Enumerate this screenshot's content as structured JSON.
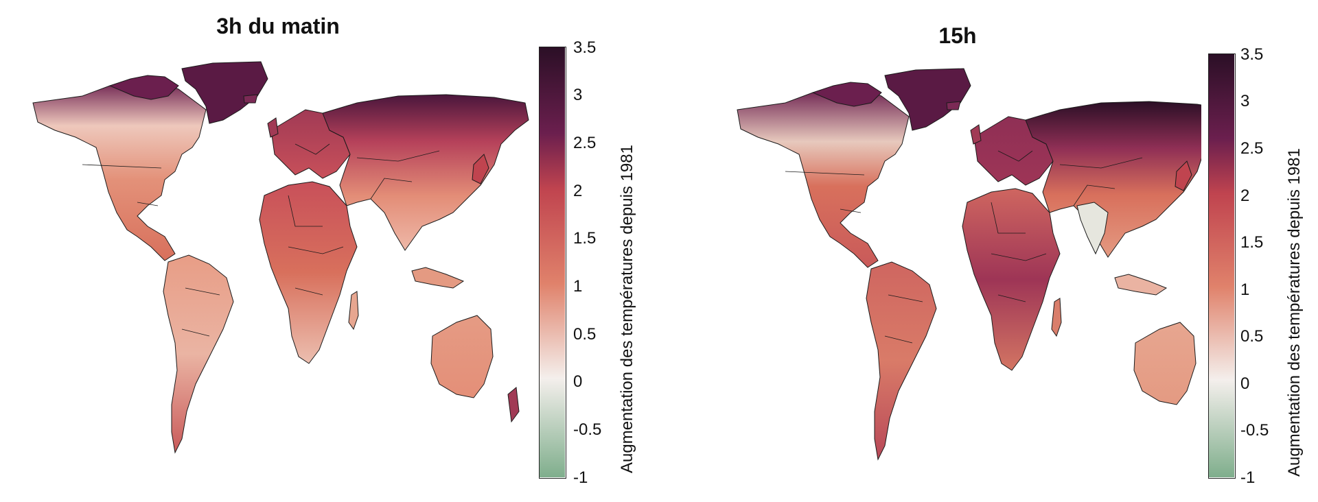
{
  "maps": [
    {
      "title": "3h du matin"
    },
    {
      "title": "15h"
    }
  ],
  "colorbar": {
    "label": "Augmentation des températures depuis 1981",
    "min": -1,
    "max": 3.5,
    "ticks": [
      "3.5",
      "3",
      "2.5",
      "2",
      "1.5",
      "1",
      "0.5",
      "0",
      "-0.5",
      "-1"
    ],
    "colors": {
      "low_green": "#7fae8c",
      "zero_white": "#f4efec",
      "mid_salmon": "#e0826b",
      "mid_red": "#c0444f",
      "high_purple": "#6b1f4e",
      "top_dark": "#2b0f26"
    }
  },
  "colors": {
    "border": "#1a1a1a",
    "ocean": "#ffffff"
  }
}
